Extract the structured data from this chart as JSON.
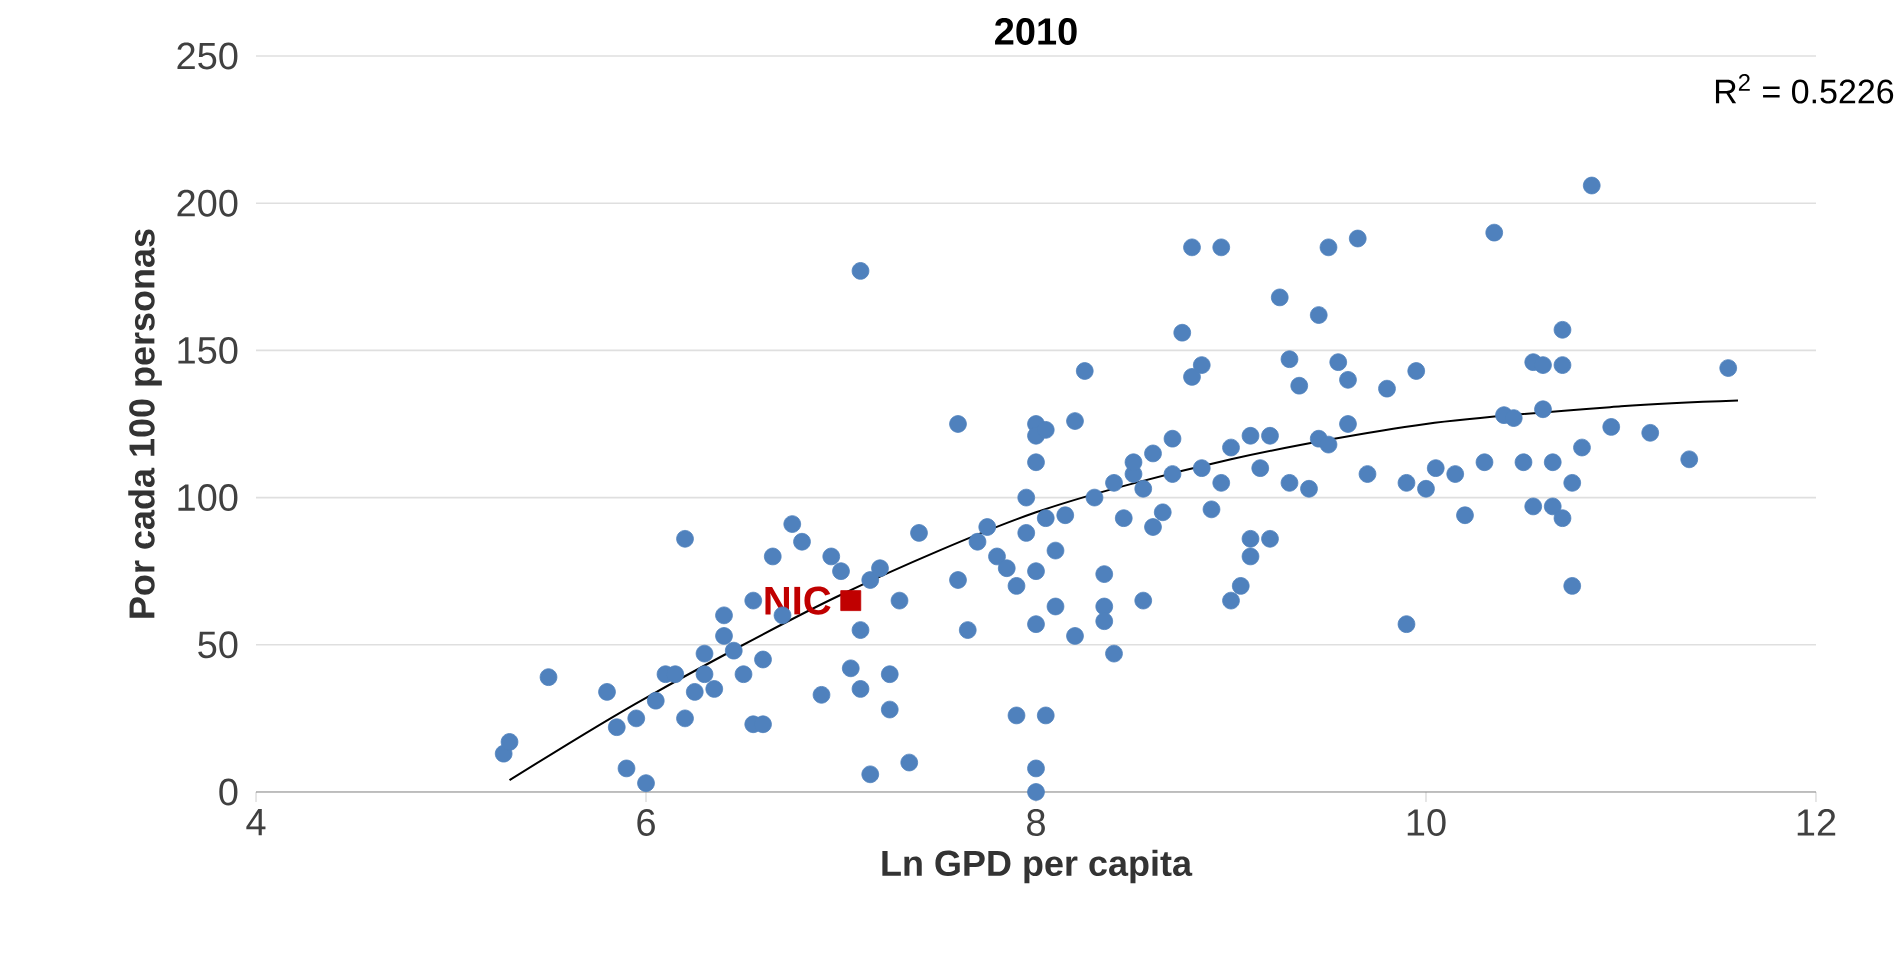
{
  "chart_data": {
    "type": "scatter",
    "title": "2010",
    "xlabel": "Ln GPD per capita",
    "ylabel": "Por cada 100 personas",
    "annotations": [
      "R$^{2}$ = 0.5226"
    ],
    "xlim": [
      4,
      12
    ],
    "ylim": [
      0,
      250
    ],
    "xticks": [
      4,
      6,
      8,
      10,
      12
    ],
    "yticks": [
      0,
      50,
      100,
      150,
      200,
      250
    ],
    "grid": "y",
    "series": [
      {
        "color": "#4f81bd",
        "marker": "circle",
        "x": [
          5.27,
          5.3,
          5.5,
          5.8,
          5.85,
          5.9,
          5.95,
          6.0,
          6.05,
          6.1,
          6.15,
          6.2,
          6.2,
          6.25,
          6.3,
          6.3,
          6.35,
          6.4,
          6.4,
          6.45,
          6.5,
          6.55,
          6.6,
          6.6,
          6.55,
          6.65,
          6.7,
          6.75,
          6.8,
          6.9,
          6.95,
          7.0,
          7.05,
          7.1,
          7.1,
          7.1,
          7.15,
          7.15,
          7.2,
          7.25,
          7.25,
          7.3,
          7.35,
          7.4,
          7.6,
          7.6,
          7.65,
          7.7,
          7.75,
          7.8,
          7.85,
          7.9,
          7.9,
          7.95,
          7.95,
          8.0,
          8.0,
          8.0,
          8.0,
          8.0,
          8.0,
          8.0,
          8.05,
          8.05,
          8.05,
          8.1,
          8.1,
          8.15,
          8.2,
          8.2,
          8.25,
          8.3,
          8.35,
          8.35,
          8.35,
          8.4,
          8.4,
          8.45,
          8.5,
          8.5,
          8.55,
          8.55,
          8.6,
          8.6,
          8.65,
          8.7,
          8.7,
          8.75,
          8.8,
          8.8,
          8.85,
          8.85,
          8.9,
          8.95,
          8.95,
          9.0,
          9.0,
          9.05,
          9.1,
          9.1,
          9.1,
          9.15,
          9.2,
          9.2,
          9.25,
          9.3,
          9.3,
          9.35,
          9.4,
          9.45,
          9.45,
          9.5,
          9.5,
          9.55,
          9.6,
          9.65,
          9.6,
          9.7,
          9.8,
          9.9,
          9.9,
          9.95,
          10.0,
          10.05,
          10.15,
          10.2,
          10.3,
          10.35,
          10.4,
          10.45,
          10.5,
          10.55,
          10.55,
          10.6,
          10.6,
          10.65,
          10.65,
          10.7,
          10.7,
          10.7,
          10.75,
          10.75,
          10.8,
          10.85,
          10.95,
          11.15,
          11.35,
          11.55
        ],
        "values": [
          13,
          17,
          39,
          34,
          22,
          8,
          25,
          3,
          31,
          40,
          40,
          86,
          25,
          34,
          40,
          47,
          35,
          53,
          60,
          48,
          40,
          23,
          23,
          45,
          65,
          80,
          60,
          91,
          85,
          33,
          80,
          75,
          42,
          35,
          55,
          177,
          6,
          72,
          76,
          28,
          40,
          65,
          10,
          88,
          125,
          72,
          55,
          85,
          90,
          80,
          76,
          26,
          70,
          100,
          88,
          125,
          121,
          112,
          75,
          57,
          8,
          0,
          93,
          123,
          26,
          63,
          82,
          94,
          53,
          126,
          143,
          100,
          74,
          63,
          58,
          105,
          47,
          93,
          108,
          112,
          103,
          65,
          115,
          90,
          95,
          108,
          120,
          156,
          141,
          185,
          145,
          110,
          96,
          185,
          105,
          117,
          65,
          70,
          121,
          86,
          80,
          110,
          86,
          121,
          168,
          147,
          105,
          138,
          103,
          162,
          120,
          185,
          118,
          146,
          125,
          188,
          140,
          108,
          137,
          57,
          105,
          143,
          103,
          110,
          108,
          94,
          112,
          190,
          128,
          127,
          112,
          146,
          97,
          130,
          145,
          97,
          112,
          145,
          157,
          93,
          70,
          105,
          117,
          206,
          124,
          122,
          113,
          144
        ]
      },
      {
        "type": "line",
        "color": "#000000",
        "marker": "none",
        "x": [
          5.3,
          6,
          7,
          8,
          9,
          10,
          11,
          11.6
        ],
        "values": [
          4,
          32,
          67,
          95,
          113,
          125,
          131,
          133
        ]
      },
      {
        "type": "scatter",
        "name": "NIC",
        "color": "#c00000",
        "marker": "square",
        "x": [
          7.05
        ],
        "values": [
          65
        ]
      }
    ]
  }
}
